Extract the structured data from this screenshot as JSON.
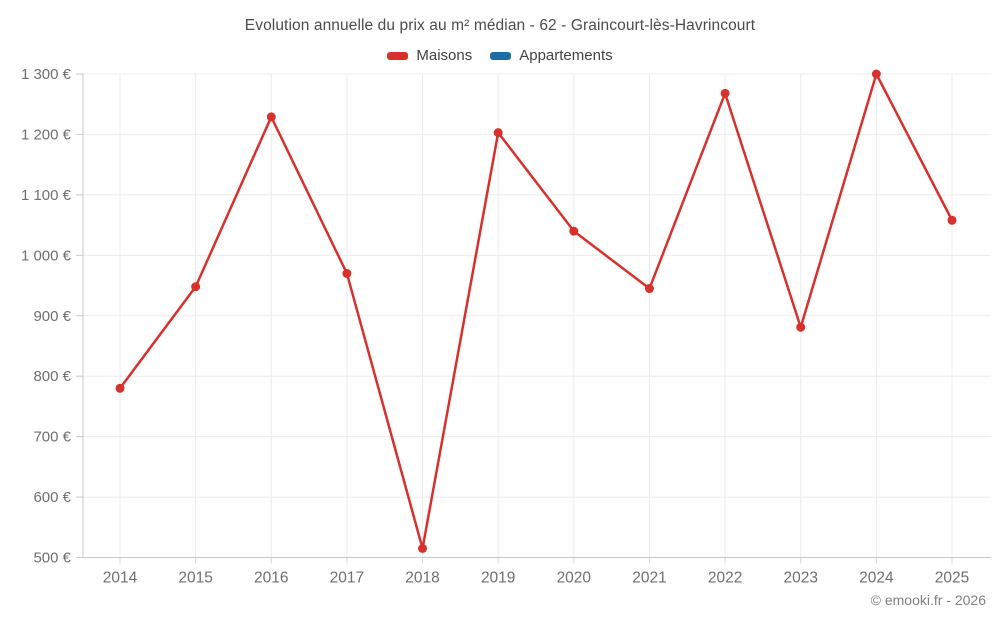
{
  "chart_data": {
    "type": "line",
    "title": "Evolution annuelle du prix au m² médian - 62 - Graincourt-lès-Havrincourt",
    "categories": [
      "2014",
      "2015",
      "2016",
      "2017",
      "2018",
      "2019",
      "2020",
      "2021",
      "2022",
      "2023",
      "2024",
      "2025"
    ],
    "series": [
      {
        "name": "Maisons",
        "color": "#d7312e",
        "values": [
          780,
          948,
          1229,
          970,
          515,
          1203,
          1040,
          945,
          1268,
          881,
          1300,
          1058
        ]
      },
      {
        "name": "Appartements",
        "color": "#1c6ea4",
        "values": []
      }
    ],
    "xlabel": "",
    "ylabel": "",
    "ylim": [
      500,
      1300
    ],
    "yticks": [
      {
        "value": 500,
        "label": "500 €"
      },
      {
        "value": 600,
        "label": "600 €"
      },
      {
        "value": 700,
        "label": "700 €"
      },
      {
        "value": 800,
        "label": "800 €"
      },
      {
        "value": 900,
        "label": "900 €"
      },
      {
        "value": 1000,
        "label": "1 000 €"
      },
      {
        "value": 1100,
        "label": "1 100 €"
      },
      {
        "value": 1200,
        "label": "1 200 €"
      },
      {
        "value": 1300,
        "label": "1 300 €"
      }
    ],
    "grid": true,
    "legend_position": "top",
    "currency_suffix": " €"
  },
  "colors": {
    "maisons": "#d7312e",
    "appartements": "#1c6ea4",
    "gridline": "#ececec",
    "axis": "#c9c9c9",
    "tick": "#d9d9d9",
    "axis_label": "#6f6f6f"
  },
  "footer": {
    "copyright": "© emooki.fr - 2026"
  }
}
